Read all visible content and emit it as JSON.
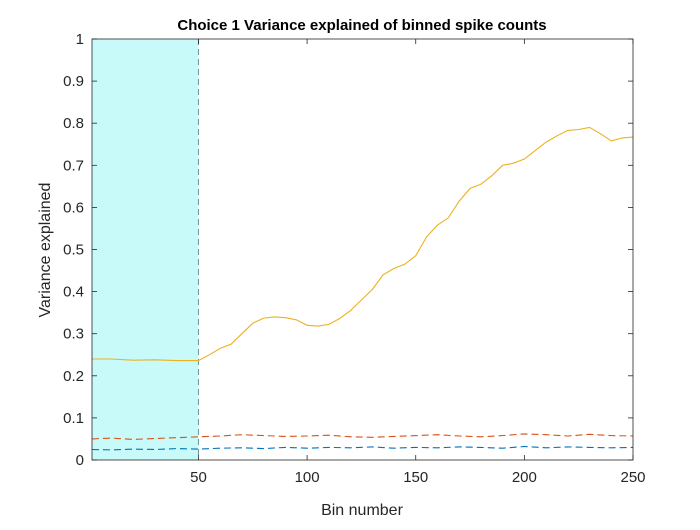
{
  "chart_data": {
    "type": "line",
    "title": "Choice 1 Variance explained of binned spike counts",
    "xlabel": "Bin number",
    "ylabel": "Variance explained",
    "xlim": [
      1,
      250
    ],
    "ylim": [
      0,
      1
    ],
    "xticks": [
      50,
      100,
      150,
      200,
      250
    ],
    "yticks": [
      0,
      0.1,
      0.2,
      0.3,
      0.4,
      0.5,
      0.6,
      0.7,
      0.8,
      0.9,
      1
    ],
    "grid": false,
    "legend": "none",
    "shaded_region": {
      "x": [
        1,
        50
      ],
      "color": "#c8fafa"
    },
    "vertical_line": {
      "x": 50,
      "style": "dashed",
      "color": "#6a9a9a"
    },
    "series": [
      {
        "style": "solid",
        "color": "#EDB120",
        "x": [
          1,
          10,
          20,
          30,
          40,
          50,
          55,
          60,
          65,
          70,
          75,
          80,
          85,
          90,
          95,
          100,
          105,
          110,
          115,
          120,
          125,
          130,
          135,
          140,
          145,
          150,
          155,
          160,
          165,
          170,
          175,
          180,
          185,
          190,
          195,
          200,
          205,
          210,
          215,
          220,
          225,
          230,
          235,
          240,
          245,
          250
        ],
        "values": [
          0.24,
          0.24,
          0.237,
          0.238,
          0.236,
          0.236,
          0.25,
          0.265,
          0.275,
          0.3,
          0.325,
          0.337,
          0.34,
          0.338,
          0.333,
          0.32,
          0.318,
          0.322,
          0.336,
          0.355,
          0.38,
          0.405,
          0.44,
          0.455,
          0.465,
          0.485,
          0.53,
          0.558,
          0.575,
          0.615,
          0.645,
          0.655,
          0.675,
          0.7,
          0.705,
          0.715,
          0.735,
          0.755,
          0.77,
          0.783,
          0.785,
          0.79,
          0.775,
          0.758,
          0.765,
          0.767
        ]
      },
      {
        "style": "dashed",
        "color": "#D95319",
        "x": [
          1,
          10,
          20,
          30,
          40,
          50,
          60,
          70,
          80,
          90,
          100,
          110,
          120,
          130,
          140,
          150,
          160,
          170,
          180,
          190,
          200,
          210,
          220,
          230,
          240,
          250
        ],
        "values": [
          0.05,
          0.052,
          0.049,
          0.051,
          0.053,
          0.055,
          0.057,
          0.06,
          0.058,
          0.056,
          0.057,
          0.059,
          0.055,
          0.054,
          0.056,
          0.058,
          0.06,
          0.057,
          0.055,
          0.058,
          0.062,
          0.06,
          0.057,
          0.061,
          0.058,
          0.057
        ]
      },
      {
        "style": "dashed",
        "color": "#0072BD",
        "x": [
          1,
          10,
          20,
          30,
          40,
          50,
          60,
          70,
          80,
          90,
          100,
          110,
          120,
          130,
          140,
          150,
          160,
          170,
          180,
          190,
          200,
          210,
          220,
          230,
          240,
          250
        ],
        "values": [
          0.025,
          0.024,
          0.026,
          0.025,
          0.027,
          0.026,
          0.028,
          0.029,
          0.027,
          0.03,
          0.028,
          0.03,
          0.029,
          0.031,
          0.028,
          0.03,
          0.029,
          0.031,
          0.03,
          0.028,
          0.032,
          0.029,
          0.031,
          0.03,
          0.029,
          0.03
        ]
      }
    ]
  }
}
